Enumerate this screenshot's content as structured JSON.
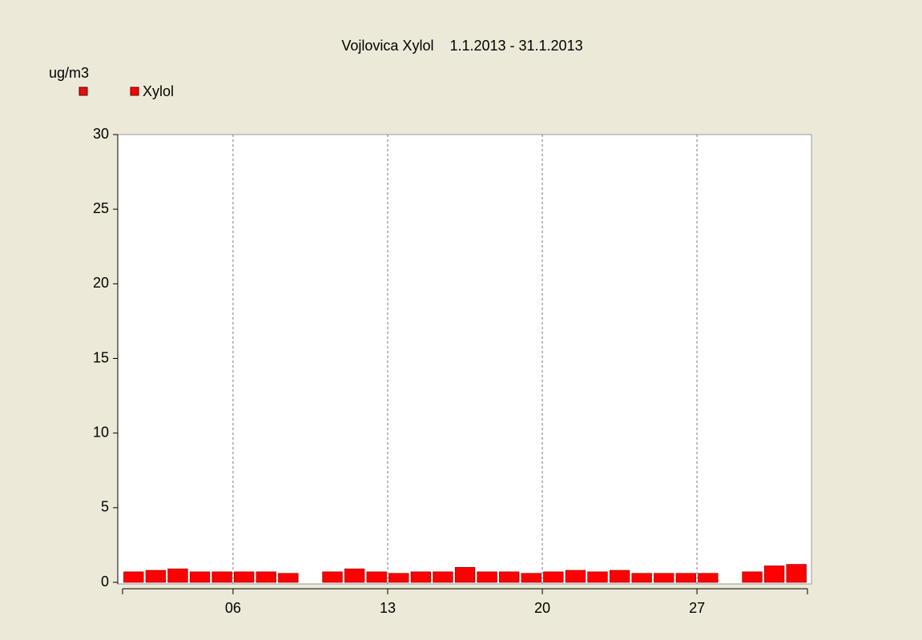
{
  "chart_data": {
    "type": "bar",
    "title": "Vojlovica Xylol    1.1.2013 - 31.1.2013",
    "y_label": "ug/m3",
    "categories": [
      null,
      null,
      null,
      null,
      null,
      "06",
      null,
      null,
      null,
      null,
      null,
      null,
      "13",
      null,
      null,
      null,
      null,
      null,
      null,
      "20",
      null,
      null,
      null,
      null,
      null,
      null,
      "27",
      null,
      null,
      null,
      null
    ],
    "series": [
      {
        "name": "Xylol",
        "color": "#ff0000",
        "values": [
          0.7,
          0.8,
          0.9,
          0.7,
          0.7,
          0.7,
          0.7,
          0.6,
          null,
          0.7,
          0.9,
          0.7,
          0.6,
          0.7,
          0.7,
          1.0,
          0.7,
          0.7,
          0.6,
          0.7,
          0.8,
          0.7,
          0.8,
          0.6,
          0.6,
          0.6,
          0.6,
          null,
          0.7,
          1.1,
          1.2
        ]
      }
    ],
    "ylim": [
      0,
      30
    ],
    "yticks": [
      0,
      5,
      10,
      15,
      20,
      25,
      30
    ],
    "grid": true
  }
}
